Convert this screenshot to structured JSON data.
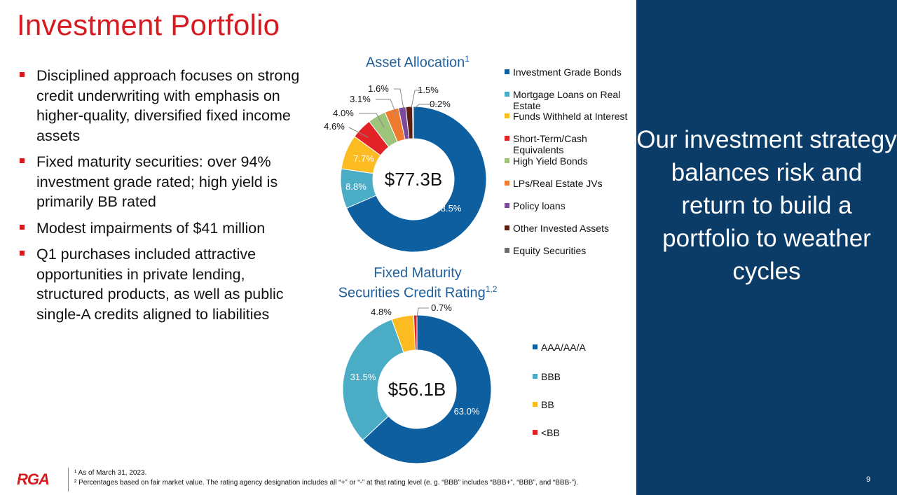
{
  "title": "Investment Portfolio",
  "bullets": [
    "Disciplined approach focuses on strong credit underwriting with emphasis on higher-quality, diversified fixed income assets",
    "Fixed maturity securities: over 94% investment grade rated; high yield is primarily BB rated",
    "Modest impairments of $41 million",
    "Q1 purchases included attractive opportunities in private lending, structured products, as well as public single-A credits aligned to liabilities"
  ],
  "sidebar": {
    "text": "Our investment strategy balances risk and return to build a portfolio to weather cycles"
  },
  "footer": {
    "logo": "RGA",
    "note1": "¹ As of March 31, 2023.",
    "note2": "² Percentages based on fair market value. The rating agency designation includes all “+” or “-” at that rating level (e. g. “BBB” includes “BBB+”, “BBB”, and “BBB-”).",
    "page_number": "9"
  },
  "chart_data": [
    {
      "type": "pie",
      "donut": true,
      "title": "Asset Allocation",
      "title_sup": "1",
      "center_label": "$77.3B",
      "legend_placement": "right",
      "categories": [
        "Investment Grade Bonds",
        "Mortgage Loans on Real Estate",
        "Funds Withheld at Interest",
        "Short-Term/Cash Equivalents",
        "High Yield Bonds",
        "LPs/Real Estate JVs",
        "Policy loans",
        "Other Invested Assets",
        "Equity Securities"
      ],
      "values": [
        68.5,
        8.8,
        7.7,
        4.6,
        4.0,
        3.1,
        1.6,
        1.5,
        0.2
      ],
      "labels": [
        "68.5%",
        "8.8%",
        "7.7%",
        "4.6%",
        "4.0%",
        "3.1%",
        "1.6%",
        "1.5%",
        "0.2%"
      ],
      "colors": [
        "#0d5fa0",
        "#4bacc6",
        "#fbbb21",
        "#e32227",
        "#9dc47a",
        "#ee7b30",
        "#7c4a9c",
        "#5c1f12",
        "#6b6b6b"
      ]
    },
    {
      "type": "pie",
      "donut": true,
      "title": "Fixed Maturity Securities Credit Rating",
      "title_line1": "Fixed Maturity",
      "title_line2": "Securities Credit Rating",
      "title_sup": "1,2",
      "center_label": "$56.1B",
      "legend_placement": "right",
      "categories": [
        "AAA/AA/A",
        "BBB",
        "BB",
        "<BB"
      ],
      "values": [
        63.0,
        31.5,
        4.8,
        0.7
      ],
      "labels": [
        "63.0%",
        "31.5%",
        "4.8%",
        "0.7%"
      ],
      "colors": [
        "#0d5fa0",
        "#4bacc6",
        "#fbbb21",
        "#e32227"
      ]
    }
  ]
}
